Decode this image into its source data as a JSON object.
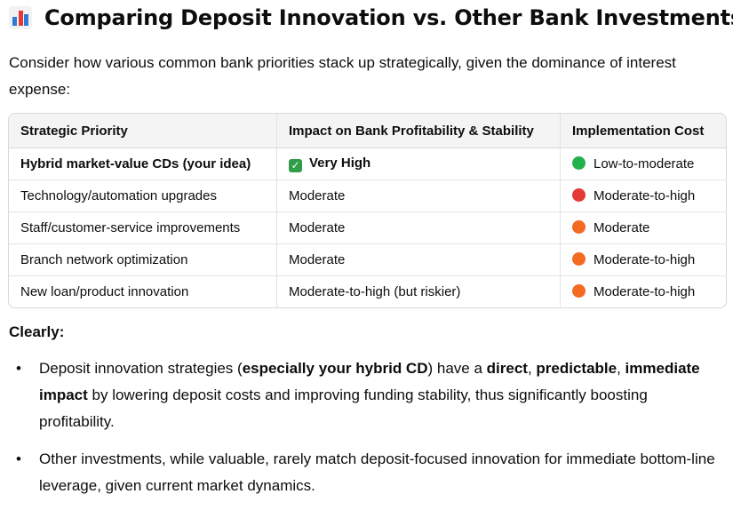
{
  "heading": {
    "icon": "bar-chart-icon",
    "title": "Comparing Deposit Innovation vs. Other Bank Investments"
  },
  "intro": "Consider how various common bank priorities stack up strategically, given the dominance of interest expense:",
  "table": {
    "headers": [
      "Strategic Priority",
      "Impact on Bank Profitability & Stability",
      "Implementation Cost"
    ],
    "rows": [
      {
        "priority": "Hybrid market-value CDs (your idea)",
        "impact": "Very High",
        "cost": "Low-to-moderate",
        "dot_color": "#22b14c",
        "impact_icon": "check-icon"
      },
      {
        "priority": "Technology/automation upgrades",
        "impact": "Moderate",
        "cost": "Moderate-to-high",
        "dot_color": "#e53935"
      },
      {
        "priority": "Staff/customer-service improvements",
        "impact": "Moderate",
        "cost": "Moderate",
        "dot_color": "#f26b21"
      },
      {
        "priority": "Branch network optimization",
        "impact": "Moderate",
        "cost": "Moderate-to-high",
        "dot_color": "#f26b21"
      },
      {
        "priority": "New loan/product innovation",
        "impact": "Moderate-to-high (but riskier)",
        "cost": "Moderate-to-high",
        "dot_color": "#f26b21"
      }
    ]
  },
  "subhead": "Clearly:",
  "bullets": [
    {
      "parts": [
        {
          "t": "Deposit innovation strategies (",
          "b": false
        },
        {
          "t": "especially your hybrid CD",
          "b": true
        },
        {
          "t": ") have a ",
          "b": false
        },
        {
          "t": "direct",
          "b": true
        },
        {
          "t": ", ",
          "b": false
        },
        {
          "t": "predictable",
          "b": true
        },
        {
          "t": ", ",
          "b": false
        },
        {
          "t": "immediate impact",
          "b": true
        },
        {
          "t": " by lowering deposit costs and improving funding stability, thus significantly boosting profitability.",
          "b": false
        }
      ]
    },
    {
      "parts": [
        {
          "t": "Other investments, while valuable, rarely match deposit-focused innovation for immediate bottom-line leverage, given current market dynamics.",
          "b": false
        }
      ]
    }
  ]
}
